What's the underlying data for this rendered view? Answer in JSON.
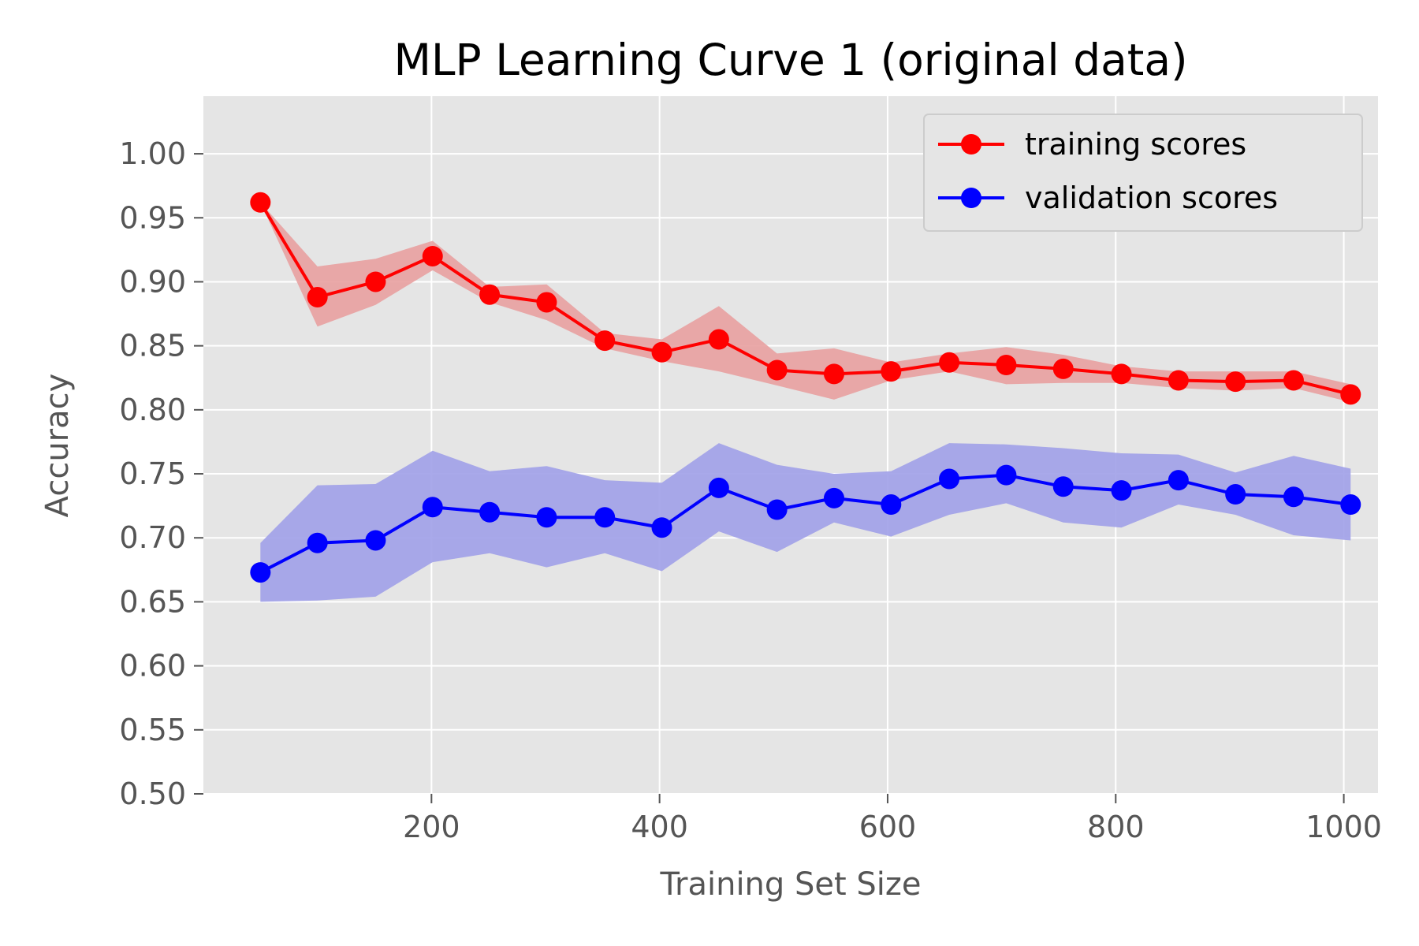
{
  "chart_data": {
    "type": "line",
    "title": "MLP Learning Curve 1 (original data)",
    "xlabel": "Training Set Size",
    "ylabel": "Accuracy",
    "xlim": [
      0,
      1030
    ],
    "ylim": [
      0.5,
      1.045
    ],
    "x_ticks": [
      200,
      400,
      600,
      800,
      1000
    ],
    "x_tick_labels": [
      "200",
      "400",
      "600",
      "800",
      "1000"
    ],
    "y_ticks": [
      0.5,
      0.55,
      0.6,
      0.65,
      0.7,
      0.75,
      0.8,
      0.85,
      0.9,
      0.95,
      1.0
    ],
    "y_tick_labels": [
      "0.50",
      "0.55",
      "0.60",
      "0.65",
      "0.70",
      "0.75",
      "0.80",
      "0.85",
      "0.90",
      "0.95",
      "1.00"
    ],
    "grid": true,
    "legend_position": "top-right",
    "x": [
      50,
      100,
      151,
      201,
      251,
      301,
      352,
      402,
      452,
      503,
      553,
      603,
      654,
      704,
      754,
      805,
      855,
      905,
      956,
      1006
    ],
    "series": [
      {
        "name": "training scores",
        "color": "#ff0000",
        "band_color": "#e8a0a0",
        "values": [
          0.962,
          0.888,
          0.9,
          0.92,
          0.89,
          0.884,
          0.854,
          0.845,
          0.855,
          0.831,
          0.828,
          0.83,
          0.837,
          0.835,
          0.832,
          0.828,
          0.823,
          0.822,
          0.823,
          0.812
        ],
        "upper": [
          0.962,
          0.912,
          0.918,
          0.932,
          0.896,
          0.898,
          0.86,
          0.855,
          0.881,
          0.844,
          0.848,
          0.837,
          0.844,
          0.849,
          0.843,
          0.834,
          0.83,
          0.83,
          0.83,
          0.82
        ],
        "lower": [
          0.962,
          0.865,
          0.882,
          0.909,
          0.884,
          0.87,
          0.848,
          0.838,
          0.83,
          0.819,
          0.808,
          0.823,
          0.83,
          0.82,
          0.821,
          0.821,
          0.817,
          0.815,
          0.817,
          0.806
        ]
      },
      {
        "name": "validation scores",
        "color": "#0000ff",
        "band_color": "#a0a0e8",
        "values": [
          0.673,
          0.696,
          0.698,
          0.724,
          0.72,
          0.716,
          0.716,
          0.708,
          0.739,
          0.722,
          0.731,
          0.726,
          0.746,
          0.749,
          0.74,
          0.737,
          0.745,
          0.734,
          0.732,
          0.726
        ],
        "upper": [
          0.696,
          0.741,
          0.742,
          0.768,
          0.752,
          0.756,
          0.745,
          0.743,
          0.774,
          0.757,
          0.75,
          0.752,
          0.774,
          0.773,
          0.77,
          0.766,
          0.765,
          0.751,
          0.764,
          0.754
        ],
        "lower": [
          0.65,
          0.651,
          0.654,
          0.681,
          0.688,
          0.677,
          0.688,
          0.674,
          0.705,
          0.689,
          0.712,
          0.701,
          0.718,
          0.727,
          0.712,
          0.708,
          0.726,
          0.718,
          0.702,
          0.698
        ]
      }
    ]
  }
}
